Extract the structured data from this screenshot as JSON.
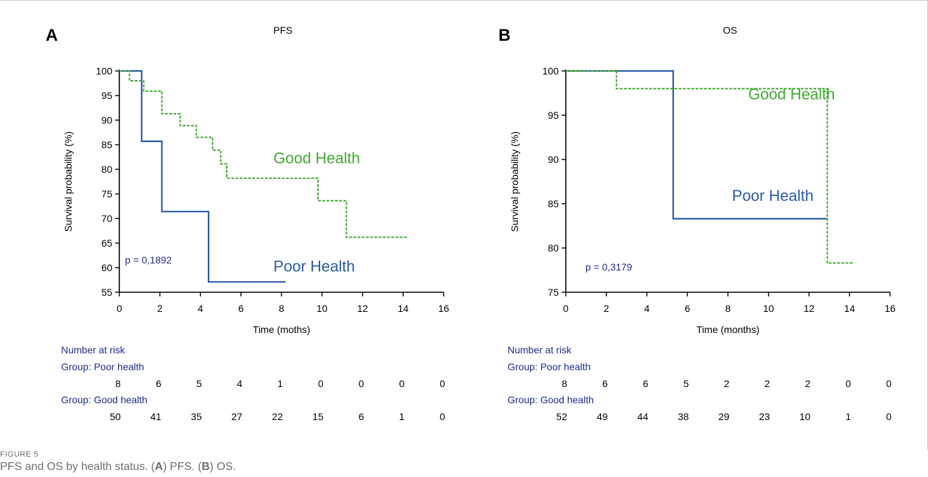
{
  "caption": {
    "label": "FIGURE 5",
    "text_start": "PFS and OS by health status. (",
    "letter_a": "A",
    "text_mid": ") PFS. (",
    "letter_b": "B",
    "text_end": ") OS."
  },
  "colors": {
    "poor": "#2a5aa8",
    "good": "#3faa2e",
    "risk_text": "#1e2a8c",
    "axis": "#000000"
  },
  "chart_data": [
    {
      "type": "line",
      "panel_letter": "A",
      "title": "PFS",
      "xlabel": "Time (moths)",
      "ylabel": "Survival probability (%)",
      "xlim": [
        0,
        16
      ],
      "ylim": [
        55,
        100
      ],
      "xticks": [
        0,
        2,
        4,
        6,
        8,
        10,
        12,
        14,
        16
      ],
      "yticks": [
        55,
        60,
        65,
        70,
        75,
        80,
        85,
        90,
        95,
        100
      ],
      "grid": false,
      "pvalue": "p = 0,1892",
      "series": [
        {
          "name": "Poor Health",
          "style": "solid",
          "x": [
            0,
            1.1,
            1.1,
            2.1,
            2.1,
            4.4,
            4.4,
            8.2
          ],
          "y": [
            100,
            100,
            85.7,
            85.7,
            71.4,
            71.4,
            57.1,
            57.1
          ]
        },
        {
          "name": "Good Health",
          "style": "dashed",
          "x": [
            0,
            0.5,
            0.5,
            1.2,
            1.2,
            2.1,
            2.1,
            3.0,
            3.0,
            3.8,
            3.8,
            4.6,
            4.6,
            5.0,
            5.0,
            5.3,
            5.3,
            9.8,
            9.8,
            11.2,
            11.2,
            14.2
          ],
          "y": [
            100,
            100,
            98,
            98,
            95.9,
            95.9,
            91.3,
            91.3,
            88.9,
            88.9,
            86.5,
            86.5,
            83.9,
            83.9,
            81.1,
            81.1,
            78.2,
            78.2,
            73.6,
            73.6,
            66.2,
            66.2
          ]
        }
      ],
      "series_labels": [
        {
          "text": "Good Health",
          "x": 7.6,
          "y": 81.2,
          "series": "good"
        },
        {
          "text": "Poor Health",
          "x": 7.6,
          "y": 59.2,
          "series": "poor"
        }
      ],
      "risk_table": {
        "heading": "Number at risk",
        "groups": [
          {
            "label": "Group: Poor health",
            "values": [
              "8",
              "6",
              "5",
              "4",
              "1",
              "0",
              "0",
              "0",
              "0"
            ]
          },
          {
            "label": "Group: Good health",
            "values": [
              "50",
              "41",
              "35",
              "27",
              "22",
              "15",
              "6",
              "1",
              "0"
            ]
          }
        ]
      }
    },
    {
      "type": "line",
      "panel_letter": "B",
      "title": "OS",
      "xlabel": "Time (months)",
      "ylabel": "Survival probability (%)",
      "xlim": [
        0,
        16
      ],
      "ylim": [
        75,
        100
      ],
      "xticks": [
        0,
        2,
        4,
        6,
        8,
        10,
        12,
        14,
        16
      ],
      "yticks": [
        75,
        80,
        85,
        90,
        95,
        100
      ],
      "grid": false,
      "pvalue": "p = 0,3179",
      "series": [
        {
          "name": "Poor Health",
          "style": "solid",
          "x": [
            0,
            5.3,
            5.3,
            12.9
          ],
          "y": [
            100,
            100,
            83.3,
            83.3
          ]
        },
        {
          "name": "Good Health",
          "style": "dashed",
          "x": [
            0,
            2.5,
            2.5,
            12.9,
            12.9,
            14.2
          ],
          "y": [
            100,
            100,
            98,
            98,
            78.3,
            78.3
          ]
        }
      ],
      "series_labels": [
        {
          "text": "Good Health",
          "x": 9.0,
          "y": 96.8,
          "series": "good"
        },
        {
          "text": "Poor Health",
          "x": 8.2,
          "y": 85.3,
          "series": "poor"
        }
      ],
      "risk_table": {
        "heading": "Number at risk",
        "groups": [
          {
            "label": "Group: Poor health",
            "values": [
              "8",
              "6",
              "6",
              "5",
              "2",
              "2",
              "2",
              "0",
              "0"
            ]
          },
          {
            "label": "Group: Good health",
            "values": [
              "52",
              "49",
              "44",
              "38",
              "29",
              "23",
              "10",
              "1",
              "0"
            ]
          }
        ]
      }
    }
  ]
}
